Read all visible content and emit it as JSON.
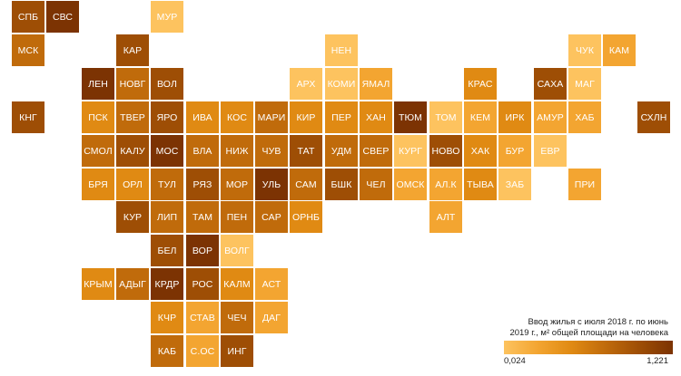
{
  "colors": {
    "scale": [
      "#FDC35F",
      "#F3A531",
      "#E08A13",
      "#C06B0B",
      "#9E4E05",
      "#7C3303"
    ]
  },
  "legend": {
    "title_line1": "Ввод жилья с июля 2018 г. по июнь",
    "title_line2": "2019 г., м² общей площади на человека",
    "min": "0,024",
    "max": "1,221"
  },
  "regions": [
    {
      "label": "СПБ",
      "col": 0,
      "row": 0,
      "level": 4
    },
    {
      "label": "СВС",
      "col": 1,
      "row": 0,
      "level": 5
    },
    {
      "label": "МУР",
      "col": 4,
      "row": 0,
      "level": 0
    },
    {
      "label": "МСК",
      "col": 0,
      "row": 1,
      "level": 3
    },
    {
      "label": "КАР",
      "col": 3,
      "row": 1,
      "level": 4
    },
    {
      "label": "НЕН",
      "col": 9,
      "row": 1,
      "level": 0
    },
    {
      "label": "ЧУК",
      "col": 16,
      "row": 1,
      "level": 0
    },
    {
      "label": "КАМ",
      "col": 17,
      "row": 1,
      "level": 1
    },
    {
      "label": "ЛЕН",
      "col": 2,
      "row": 2,
      "level": 5
    },
    {
      "label": "НОВГ",
      "col": 3,
      "row": 2,
      "level": 3
    },
    {
      "label": "ВОЛ",
      "col": 4,
      "row": 2,
      "level": 4
    },
    {
      "label": "АРХ",
      "col": 8,
      "row": 2,
      "level": 0
    },
    {
      "label": "КОМИ",
      "col": 9,
      "row": 2,
      "level": 0
    },
    {
      "label": "ЯМАЛ",
      "col": 10,
      "row": 2,
      "level": 1
    },
    {
      "label": "КРАС",
      "col": 13,
      "row": 2,
      "level": 2
    },
    {
      "label": "САХА",
      "col": 15,
      "row": 2,
      "level": 4
    },
    {
      "label": "МАГ",
      "col": 16,
      "row": 2,
      "level": 0
    },
    {
      "label": "КНГ",
      "col": 0,
      "row": 3,
      "level": 4
    },
    {
      "label": "ПСК",
      "col": 2,
      "row": 3,
      "level": 2
    },
    {
      "label": "ТВЕР",
      "col": 3,
      "row": 3,
      "level": 3
    },
    {
      "label": "ЯРО",
      "col": 4,
      "row": 3,
      "level": 4
    },
    {
      "label": "ИВА",
      "col": 5,
      "row": 3,
      "level": 2
    },
    {
      "label": "КОС",
      "col": 6,
      "row": 3,
      "level": 2
    },
    {
      "label": "МАРИ",
      "col": 7,
      "row": 3,
      "level": 3
    },
    {
      "label": "КИР",
      "col": 8,
      "row": 3,
      "level": 2
    },
    {
      "label": "ПЕР",
      "col": 9,
      "row": 3,
      "level": 2
    },
    {
      "label": "ХАН",
      "col": 10,
      "row": 3,
      "level": 2
    },
    {
      "label": "ТЮМ",
      "col": 11,
      "row": 3,
      "level": 5
    },
    {
      "label": "ТОМ",
      "col": 12,
      "row": 3,
      "level": 0
    },
    {
      "label": "КЕМ",
      "col": 13,
      "row": 3,
      "level": 1
    },
    {
      "label": "ИРК",
      "col": 14,
      "row": 3,
      "level": 2
    },
    {
      "label": "АМУР",
      "col": 15,
      "row": 3,
      "level": 1
    },
    {
      "label": "ХАБ",
      "col": 16,
      "row": 3,
      "level": 1
    },
    {
      "label": "СХЛН",
      "col": 18,
      "row": 3,
      "level": 4
    },
    {
      "label": "СМОЛ",
      "col": 2,
      "row": 4,
      "level": 3
    },
    {
      "label": "КАЛУ",
      "col": 3,
      "row": 4,
      "level": 4
    },
    {
      "label": "МОС",
      "col": 4,
      "row": 4,
      "level": 5
    },
    {
      "label": "ВЛА",
      "col": 5,
      "row": 4,
      "level": 3
    },
    {
      "label": "НИЖ",
      "col": 6,
      "row": 4,
      "level": 3
    },
    {
      "label": "ЧУВ",
      "col": 7,
      "row": 4,
      "level": 3
    },
    {
      "label": "ТАТ",
      "col": 8,
      "row": 4,
      "level": 4
    },
    {
      "label": "УДМ",
      "col": 9,
      "row": 4,
      "level": 3
    },
    {
      "label": "СВЕР",
      "col": 10,
      "row": 4,
      "level": 3
    },
    {
      "label": "КУРГ",
      "col": 11,
      "row": 4,
      "level": 0
    },
    {
      "label": "НОВО",
      "col": 12,
      "row": 4,
      "level": 4
    },
    {
      "label": "ХАК",
      "col": 13,
      "row": 4,
      "level": 2
    },
    {
      "label": "БУР",
      "col": 14,
      "row": 4,
      "level": 1
    },
    {
      "label": "ЕВР",
      "col": 15,
      "row": 4,
      "level": 0
    },
    {
      "label": "БРЯ",
      "col": 2,
      "row": 5,
      "level": 2
    },
    {
      "label": "ОРЛ",
      "col": 3,
      "row": 5,
      "level": 2
    },
    {
      "label": "ТУЛ",
      "col": 4,
      "row": 5,
      "level": 3
    },
    {
      "label": "РЯЗ",
      "col": 5,
      "row": 5,
      "level": 4
    },
    {
      "label": "МОР",
      "col": 6,
      "row": 5,
      "level": 3
    },
    {
      "label": "УЛЬ",
      "col": 7,
      "row": 5,
      "level": 5
    },
    {
      "label": "САМ",
      "col": 8,
      "row": 5,
      "level": 3
    },
    {
      "label": "БШК",
      "col": 9,
      "row": 5,
      "level": 4
    },
    {
      "label": "ЧЕЛ",
      "col": 10,
      "row": 5,
      "level": 3
    },
    {
      "label": "ОМСК",
      "col": 11,
      "row": 5,
      "level": 1
    },
    {
      "label": "АЛ.К",
      "col": 12,
      "row": 5,
      "level": 1
    },
    {
      "label": "ТЫВА",
      "col": 13,
      "row": 5,
      "level": 2
    },
    {
      "label": "ЗАБ",
      "col": 14,
      "row": 5,
      "level": 0
    },
    {
      "label": "ПРИ",
      "col": 16,
      "row": 5,
      "level": 1
    },
    {
      "label": "КУР",
      "col": 3,
      "row": 6,
      "level": 4
    },
    {
      "label": "ЛИП",
      "col": 4,
      "row": 6,
      "level": 3
    },
    {
      "label": "ТАМ",
      "col": 5,
      "row": 6,
      "level": 3
    },
    {
      "label": "ПЕН",
      "col": 6,
      "row": 6,
      "level": 3
    },
    {
      "label": "САР",
      "col": 7,
      "row": 6,
      "level": 3
    },
    {
      "label": "ОРНБ",
      "col": 8,
      "row": 6,
      "level": 2
    },
    {
      "label": "АЛТ",
      "col": 12,
      "row": 6,
      "level": 1
    },
    {
      "label": "БЕЛ",
      "col": 4,
      "row": 7,
      "level": 4
    },
    {
      "label": "ВОР",
      "col": 5,
      "row": 7,
      "level": 5
    },
    {
      "label": "ВОЛГ",
      "col": 6,
      "row": 7,
      "level": 0
    },
    {
      "label": "КРЫМ",
      "col": 2,
      "row": 8,
      "level": 2
    },
    {
      "label": "АДЫГ",
      "col": 3,
      "row": 8,
      "level": 3
    },
    {
      "label": "КРДР",
      "col": 4,
      "row": 8,
      "level": 5
    },
    {
      "label": "РОС",
      "col": 5,
      "row": 8,
      "level": 4
    },
    {
      "label": "КАЛМ",
      "col": 6,
      "row": 8,
      "level": 2
    },
    {
      "label": "АСТ",
      "col": 7,
      "row": 8,
      "level": 1
    },
    {
      "label": "КЧР",
      "col": 4,
      "row": 9,
      "level": 2
    },
    {
      "label": "СТАВ",
      "col": 5,
      "row": 9,
      "level": 1
    },
    {
      "label": "ЧЕЧ",
      "col": 6,
      "row": 9,
      "level": 3
    },
    {
      "label": "ДАГ",
      "col": 7,
      "row": 9,
      "level": 1
    },
    {
      "label": "КАБ",
      "col": 4,
      "row": 10,
      "level": 3
    },
    {
      "label": "С.ОС",
      "col": 5,
      "row": 10,
      "level": 1
    },
    {
      "label": "ИНГ",
      "col": 6,
      "row": 10,
      "level": 4
    }
  ]
}
